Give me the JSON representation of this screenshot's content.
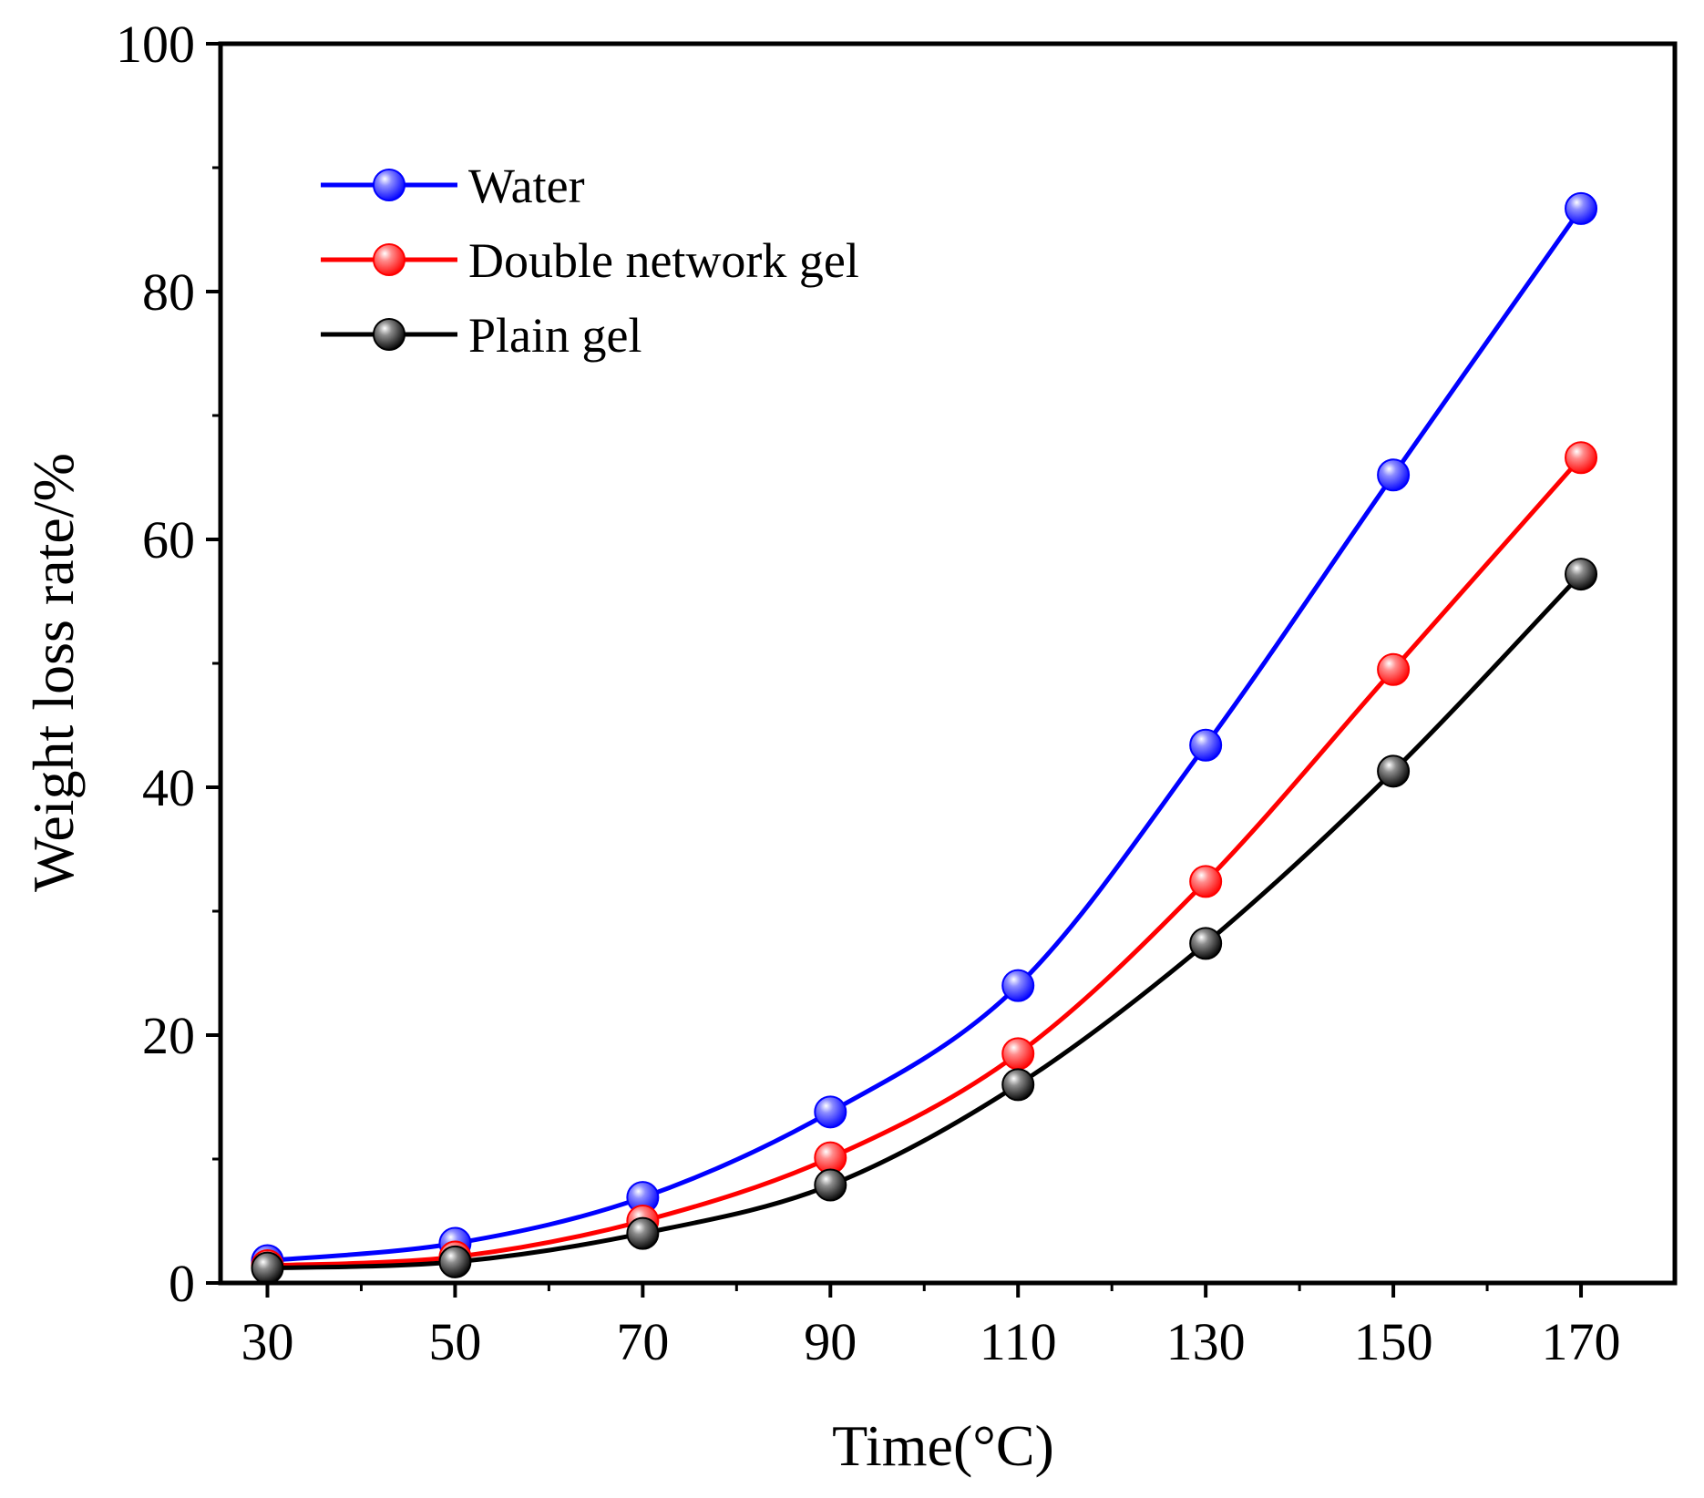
{
  "chart_data": {
    "type": "line",
    "title": "",
    "xlabel": "Time(°C)",
    "ylabel": "Weight loss rate/%",
    "x": [
      30,
      50,
      70,
      90,
      110,
      130,
      150,
      170
    ],
    "xlim": [
      25,
      180
    ],
    "ylim": [
      0,
      100
    ],
    "xticks": [
      30,
      50,
      70,
      90,
      110,
      130,
      150,
      170
    ],
    "yticks": [
      0,
      20,
      40,
      60,
      80,
      100
    ],
    "yminor_step": 10,
    "grid": false,
    "legend_position": "top-left",
    "series": [
      {
        "name": "Water",
        "color": "#0000ff",
        "values": [
          1.8,
          3.2,
          6.9,
          13.8,
          24.0,
          43.4,
          65.2,
          86.7
        ]
      },
      {
        "name": "Double network gel",
        "color": "#ff0000",
        "values": [
          1.4,
          2.1,
          5.0,
          10.1,
          18.5,
          32.4,
          49.5,
          66.6
        ]
      },
      {
        "name": "Plain gel",
        "color": "#000000",
        "values": [
          1.2,
          1.7,
          4.0,
          7.9,
          16.0,
          27.4,
          41.3,
          57.2
        ]
      }
    ]
  }
}
